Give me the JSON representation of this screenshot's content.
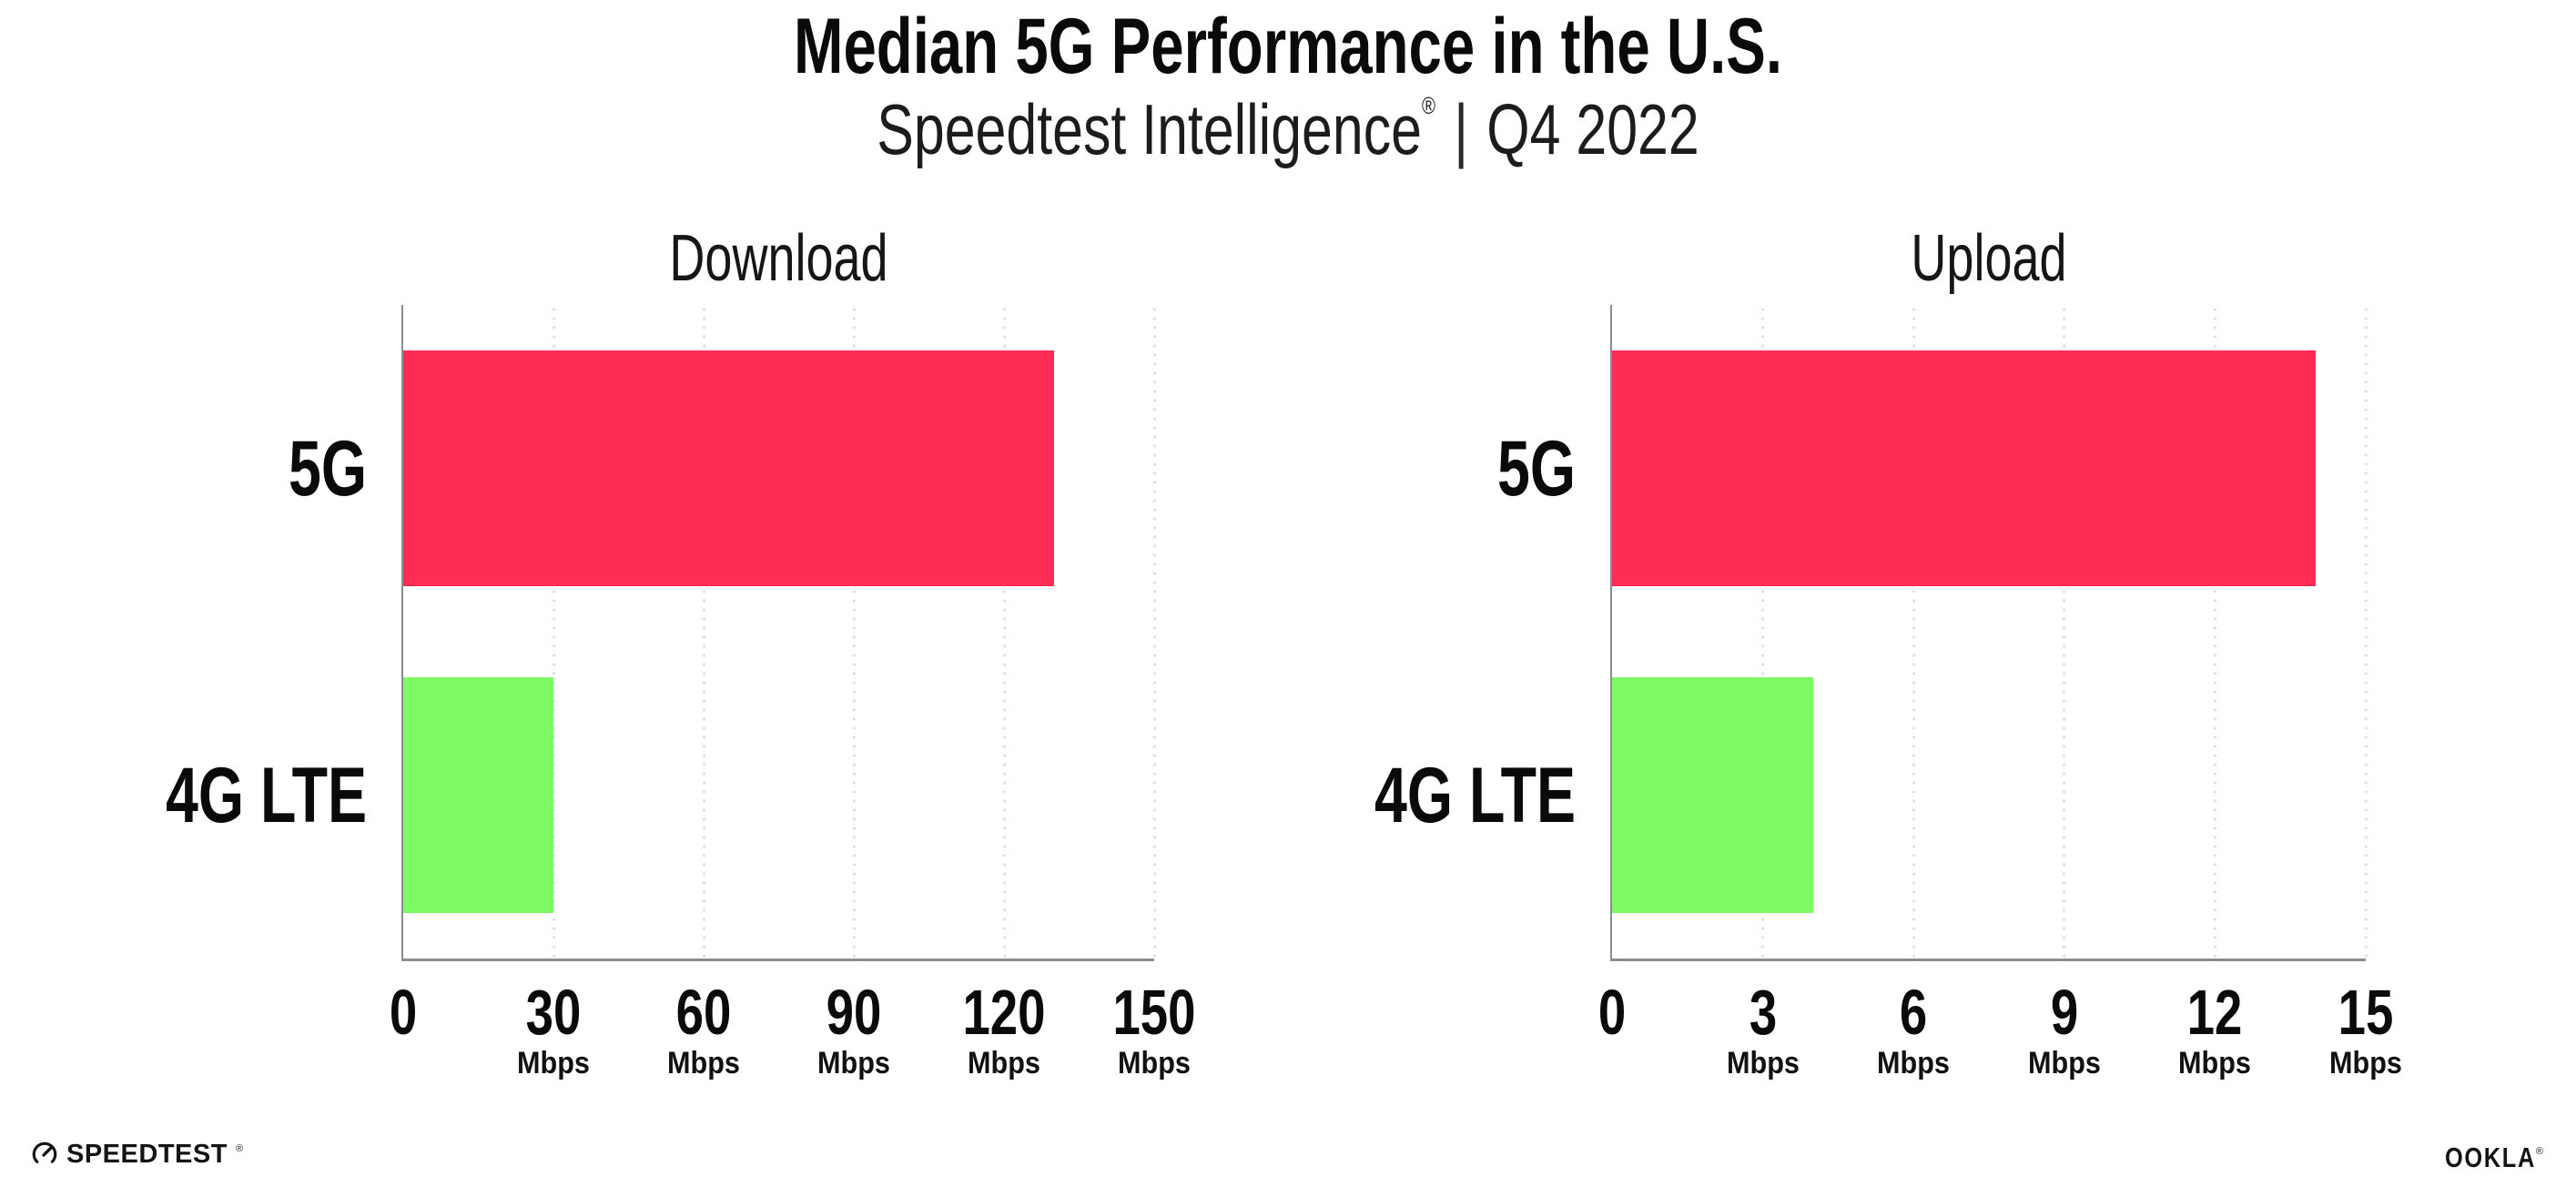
{
  "header": {
    "title": "Median 5G Performance in the U.S.",
    "subtitle": {
      "brand": "Speedtest Intelligence",
      "registered": "®",
      "separator": "|",
      "period": "Q4 2022"
    }
  },
  "colors": {
    "bar_5g": "#FF2D55",
    "bar_4g_lte": "#7DFA64",
    "grid": "#DEDEE9",
    "axis": "#8C8C94",
    "text": "#0A0A0A"
  },
  "chart_data": [
    {
      "type": "bar",
      "orientation": "horizontal",
      "title": "Download",
      "unit": "Mbps",
      "categories": [
        "5G",
        "4G LTE"
      ],
      "values": [
        130,
        30
      ],
      "xlim": [
        0,
        150
      ],
      "xticks": [
        0,
        30,
        60,
        90,
        120,
        150
      ],
      "bar_colors": [
        "#FF2D55",
        "#7DFA64"
      ],
      "grid": "dotted-vertical",
      "legend": false
    },
    {
      "type": "bar",
      "orientation": "horizontal",
      "title": "Upload",
      "unit": "Mbps",
      "categories": [
        "5G",
        "4G LTE"
      ],
      "values": [
        14,
        4
      ],
      "xlim": [
        0,
        15
      ],
      "xticks": [
        0,
        3,
        6,
        9,
        12,
        15
      ],
      "bar_colors": [
        "#FF2D55",
        "#7DFA64"
      ],
      "grid": "dotted-vertical",
      "legend": false
    }
  ],
  "footer": {
    "speedtest_text": "SPEEDTEST",
    "speedtest_mark": "®",
    "ookla_text": "OOKLA",
    "ookla_mark": "®"
  }
}
